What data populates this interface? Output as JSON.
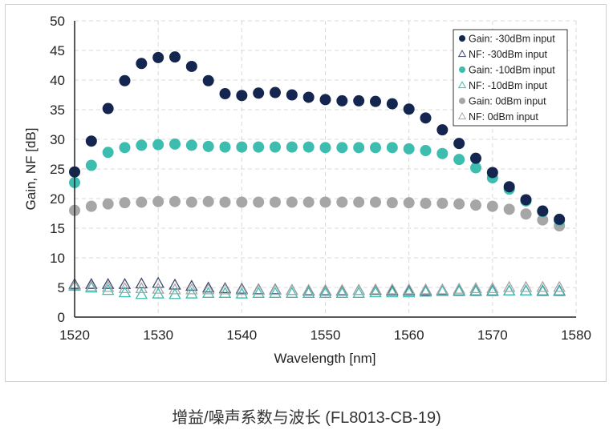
{
  "caption": "增益/噪声系数与波长 (FL8013-CB-19)",
  "chart_data": {
    "type": "scatter",
    "xlabel": "Wavelength [nm]",
    "ylabel": "Gain, NF [dB]",
    "xlim": [
      1520,
      1580
    ],
    "ylim": [
      0,
      50
    ],
    "xticks": [
      1520,
      1530,
      1540,
      1550,
      1560,
      1570,
      1580
    ],
    "yticks": [
      0,
      5,
      10,
      15,
      20,
      25,
      30,
      35,
      40,
      45,
      50
    ],
    "grid": true,
    "legend_position": "top-right",
    "x": [
      1520,
      1522,
      1524,
      1526,
      1528,
      1530,
      1532,
      1534,
      1536,
      1538,
      1540,
      1542,
      1544,
      1546,
      1548,
      1550,
      1552,
      1554,
      1556,
      1558,
      1560,
      1562,
      1564,
      1566,
      1568,
      1570,
      1572,
      1574,
      1576,
      1578
    ],
    "series": [
      {
        "name": "Gain: -30dBm input",
        "marker": "circle",
        "color": "#14254f",
        "values": [
          24.5,
          29.7,
          35.2,
          39.9,
          42.8,
          43.8,
          43.9,
          42.3,
          39.9,
          37.7,
          37.4,
          37.8,
          37.9,
          37.5,
          37.1,
          36.7,
          36.5,
          36.5,
          36.4,
          36.0,
          35.1,
          33.6,
          31.6,
          29.3,
          26.8,
          24.4,
          22.0,
          19.8,
          17.9,
          16.5
        ]
      },
      {
        "name": "NF: -30dBm input",
        "marker": "triangle",
        "color": "#3d4a6e",
        "values": [
          5.5,
          5.5,
          5.5,
          5.5,
          5.6,
          5.7,
          5.4,
          5.2,
          4.9,
          4.8,
          4.7,
          4.6,
          4.6,
          4.5,
          4.4,
          4.4,
          4.4,
          4.5,
          4.5,
          4.4,
          4.4,
          4.4,
          4.5,
          4.4,
          4.4,
          4.4,
          4.4,
          4.4,
          4.4,
          4.4
        ]
      },
      {
        "name": "Gain: -10dBm input",
        "marker": "circle",
        "color": "#3dbdb0",
        "values": [
          22.7,
          25.6,
          27.8,
          28.6,
          29.0,
          29.1,
          29.2,
          29.0,
          28.8,
          28.7,
          28.7,
          28.7,
          28.7,
          28.7,
          28.7,
          28.6,
          28.6,
          28.6,
          28.6,
          28.6,
          28.4,
          28.1,
          27.6,
          26.6,
          25.2,
          23.5,
          21.6,
          19.6,
          17.8,
          16.3
        ]
      },
      {
        "name": "NF: -10dBm input",
        "marker": "triangle",
        "color": "#3dbdb0",
        "values": [
          5.2,
          4.9,
          4.5,
          4.1,
          3.8,
          3.9,
          3.8,
          3.9,
          4.0,
          4.0,
          3.9,
          4.0,
          4.0,
          4.0,
          4.0,
          4.0,
          4.0,
          4.0,
          4.1,
          4.1,
          4.1,
          4.2,
          4.3,
          4.3,
          4.3,
          4.3,
          4.4,
          4.4,
          4.3,
          4.3
        ]
      },
      {
        "name": "Gain: 0dBm input",
        "marker": "circle",
        "color": "#a6a6a6",
        "values": [
          18.0,
          18.7,
          19.1,
          19.3,
          19.4,
          19.5,
          19.5,
          19.4,
          19.5,
          19.4,
          19.4,
          19.4,
          19.4,
          19.4,
          19.4,
          19.4,
          19.4,
          19.4,
          19.4,
          19.3,
          19.3,
          19.2,
          19.2,
          19.1,
          18.9,
          18.7,
          18.2,
          17.4,
          16.4,
          15.4
        ]
      },
      {
        "name": "NF: 0dBm input",
        "marker": "triangle",
        "color": "#a6a6a6",
        "values": [
          5.3,
          5.1,
          5.0,
          4.8,
          4.8,
          4.7,
          4.6,
          4.6,
          4.6,
          4.6,
          4.5,
          4.5,
          4.5,
          4.5,
          4.5,
          4.5,
          4.5,
          4.5,
          4.6,
          4.6,
          4.6,
          4.6,
          4.6,
          4.7,
          4.8,
          4.8,
          5.0,
          5.0,
          5.0,
          5.0
        ]
      }
    ]
  }
}
